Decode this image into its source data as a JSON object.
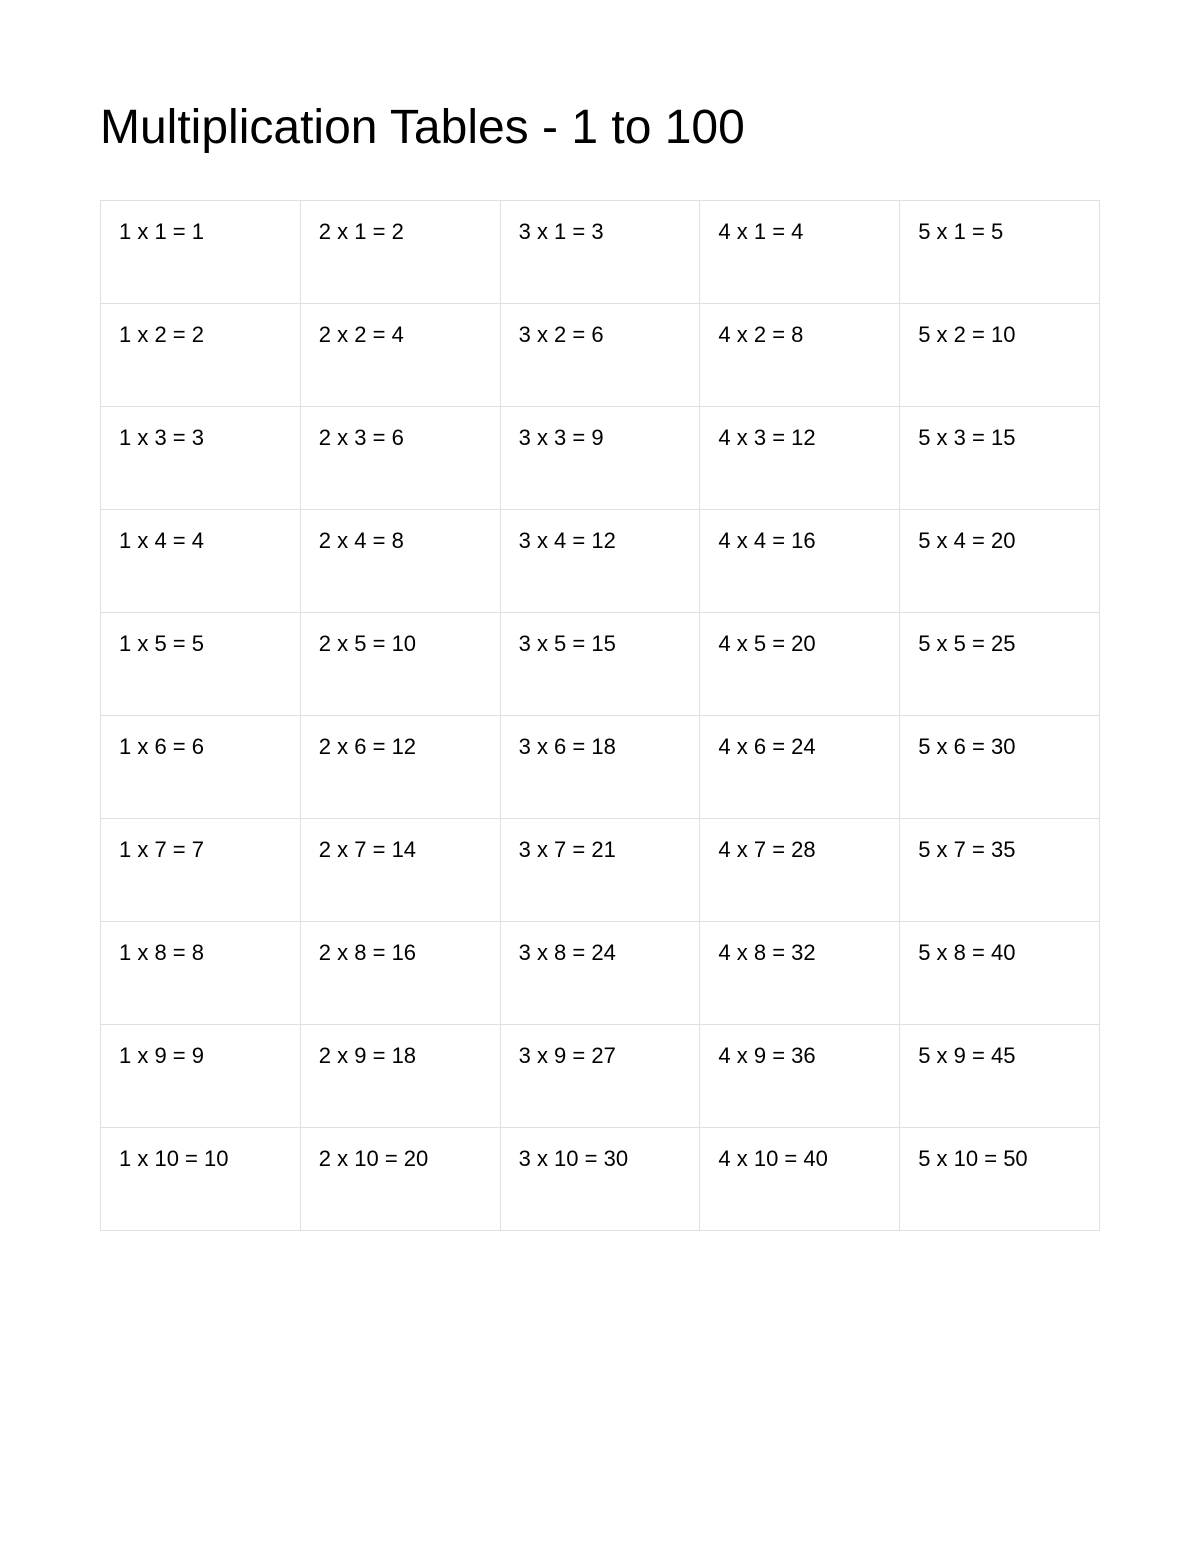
{
  "title": "Multiplication Tables - 1 to 100",
  "table": {
    "type": "table",
    "columns_count": 5,
    "rows_count": 10,
    "border_color": "#e0e0e0",
    "background_color": "#ffffff",
    "text_color": "#000000",
    "cell_fontsize": 22,
    "title_fontsize": 48,
    "rows": [
      [
        "1 x 1 = 1",
        "2 x 1 = 2",
        "3 x 1 = 3",
        "4 x 1 = 4",
        "5 x 1 = 5"
      ],
      [
        "1 x 2 = 2",
        "2 x 2 = 4",
        "3 x 2 = 6",
        "4 x 2 = 8",
        "5 x 2 = 10"
      ],
      [
        "1 x 3 = 3",
        "2 x 3 = 6",
        "3 x 3 = 9",
        "4 x 3 = 12",
        "5 x 3 = 15"
      ],
      [
        "1 x 4 = 4",
        "2 x 4 = 8",
        "3 x 4 = 12",
        "4 x 4 = 16",
        "5 x 4 = 20"
      ],
      [
        "1 x 5 = 5",
        "2 x 5 = 10",
        "3 x 5 = 15",
        "4 x 5 = 20",
        "5 x 5 = 25"
      ],
      [
        "1 x 6 = 6",
        "2 x 6 = 12",
        "3 x 6 = 18",
        "4 x 6 = 24",
        "5 x 6 = 30"
      ],
      [
        "1 x 7 = 7",
        "2 x 7 = 14",
        "3 x 7 = 21",
        "4 x 7 = 28",
        "5 x 7 = 35"
      ],
      [
        "1 x 8 = 8",
        "2 x 8 = 16",
        "3 x 8 = 24",
        "4 x 8 = 32",
        "5 x 8 = 40"
      ],
      [
        "1 x 9 = 9",
        "2 x 9 = 18",
        "3 x 9 = 27",
        "4 x 9 = 36",
        "5 x 9 = 45"
      ],
      [
        "1 x 10 = 10",
        "2 x 10 = 20",
        "3 x 10 = 30",
        "4 x 10 = 40",
        "5 x 10 = 50"
      ]
    ]
  }
}
